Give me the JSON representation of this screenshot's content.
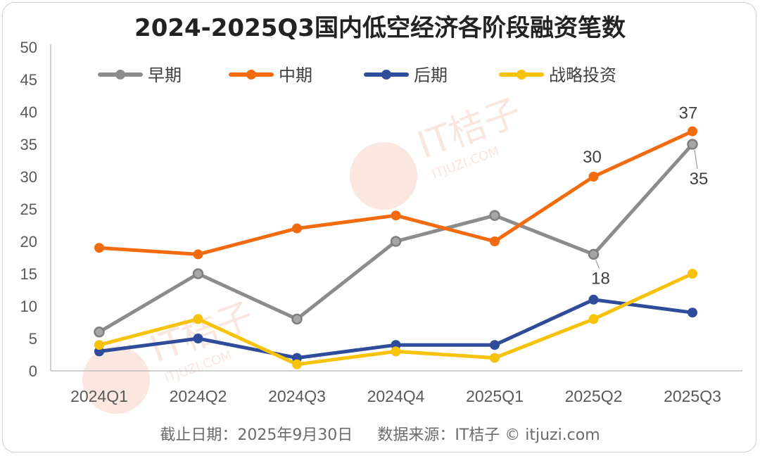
{
  "chart_data": {
    "type": "line",
    "title": "2024-2025Q3国内低空经济各阶段融资笔数",
    "categories": [
      "2024Q1",
      "2024Q2",
      "2024Q3",
      "2024Q4",
      "2025Q1",
      "2025Q2",
      "2025Q3"
    ],
    "ylim": [
      0,
      50
    ],
    "yticks": [
      0,
      5,
      10,
      15,
      20,
      25,
      30,
      35,
      40,
      45,
      50
    ],
    "series": [
      {
        "name": "早期",
        "color": "#8c8c8c",
        "values": [
          6,
          15,
          8,
          20,
          24,
          18,
          35
        ]
      },
      {
        "name": "中期",
        "color": "#f26b0f",
        "values": [
          19,
          18,
          22,
          24,
          20,
          30,
          37
        ]
      },
      {
        "name": "后期",
        "color": "#2e4c9a",
        "values": [
          3,
          5,
          2,
          4,
          4,
          11,
          9
        ]
      },
      {
        "name": "战略投资",
        "color": "#f7c20a",
        "values": [
          4,
          8,
          1,
          3,
          2,
          8,
          15
        ]
      }
    ],
    "annotations": [
      {
        "series": 1,
        "index": 5,
        "text": "30"
      },
      {
        "series": 1,
        "index": 6,
        "text": "37"
      },
      {
        "series": 0,
        "index": 5,
        "text": "18"
      },
      {
        "series": 0,
        "index": 6,
        "text": "35"
      }
    ],
    "legend_position": "top"
  },
  "footer": {
    "date_text": "截止日期：2025年9月30日",
    "source_text": "数据来源：IT桔子 © itjuzi.com"
  },
  "watermark": {
    "brand": "IT桔子",
    "site": "ITJUZI.COM"
  },
  "colors": {
    "axis": "#bfbfbf",
    "text": "#595959",
    "annotation": "#404040"
  }
}
